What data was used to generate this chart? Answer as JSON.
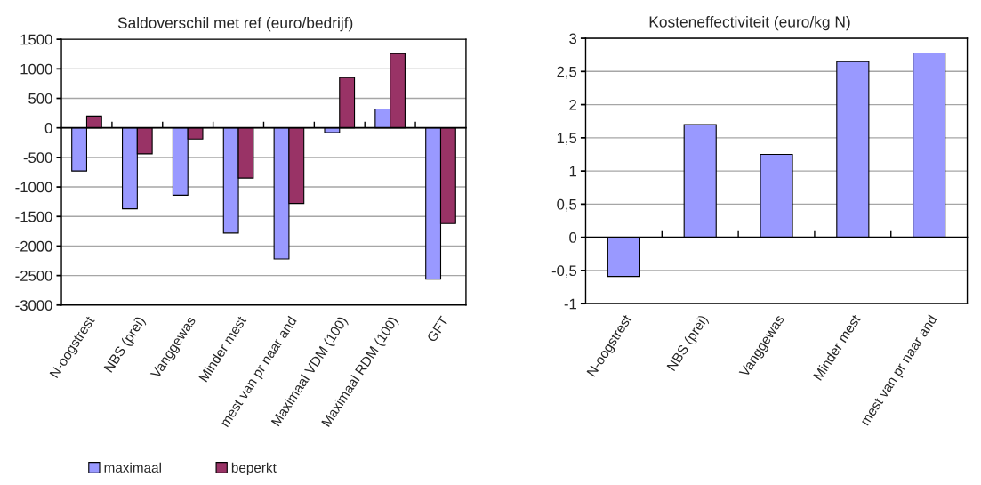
{
  "chart_data": [
    {
      "type": "bar",
      "title": "Saldoverschil met ref (euro/bedrijf)",
      "categories": [
        "N-oogstrest",
        "NBS (prei)",
        "Vanggewas",
        "Minder mest",
        "mest van pr naar and",
        "Maximaal VDM (100)",
        "Maximaal RDM (100)",
        "GFT"
      ],
      "series": [
        {
          "name": "maximaal",
          "color": "#9999ff",
          "values": [
            -730,
            -1370,
            -1140,
            -1780,
            -2220,
            -80,
            320,
            -2560
          ]
        },
        {
          "name": "beperkt",
          "color": "#993366",
          "values": [
            200,
            -440,
            -190,
            -850,
            -1280,
            850,
            1260,
            -1620
          ]
        }
      ],
      "ylim": [
        -3000,
        1500
      ],
      "yticks": [
        -3000,
        -2500,
        -2000,
        -1500,
        -1000,
        -500,
        0,
        500,
        1000,
        1500
      ],
      "grid": "y",
      "legend": "bottom"
    },
    {
      "type": "bar",
      "title": "Kosteneffectiviteit (euro/kg N)",
      "categories": [
        "N-oogstrest",
        "NBS (prei)",
        "Vanggewas",
        "Minder mest",
        "mest van pr naar and"
      ],
      "series": [
        {
          "color": "#9999ff",
          "values": [
            -0.59,
            1.7,
            1.25,
            2.65,
            2.78
          ]
        }
      ],
      "ylim": [
        -1,
        3
      ],
      "yticks": [
        -1,
        {
          "value": -0.5,
          "label": "-0,5"
        },
        0,
        {
          "value": 0.5,
          "label": "0,5"
        },
        1,
        {
          "value": 1.5,
          "label": "1,5"
        },
        2,
        {
          "value": 2.5,
          "label": "2,5"
        },
        3
      ],
      "grid": "y"
    }
  ]
}
